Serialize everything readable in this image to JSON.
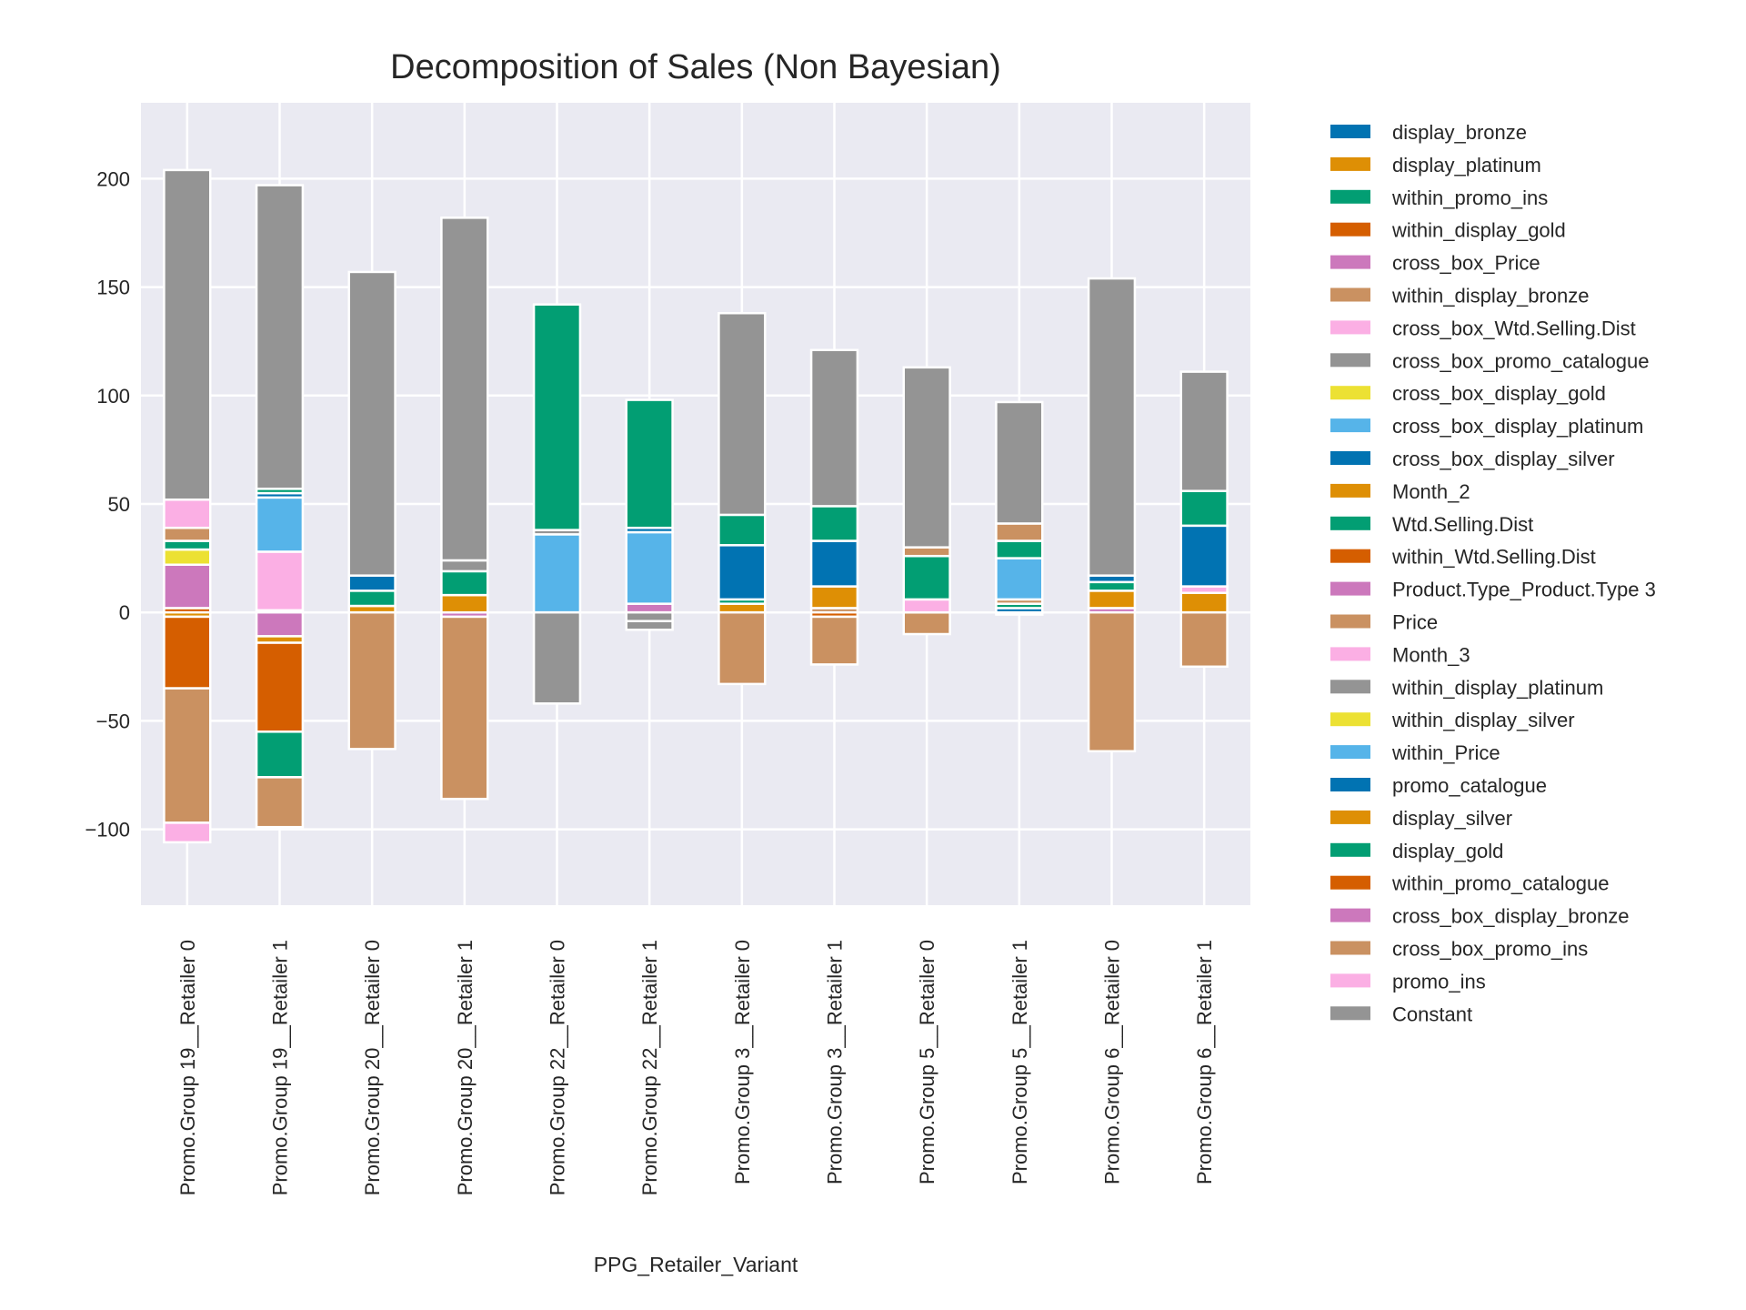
{
  "chart_data": {
    "type": "bar",
    "stacked": true,
    "diverging": true,
    "title": "Decomposition of Sales (Non Bayesian)",
    "xlabel": "PPG_Retailer_Variant",
    "ylabel": "",
    "ylim": [
      -135,
      235
    ],
    "yticks": [
      -100,
      -50,
      0,
      50,
      100,
      150,
      200
    ],
    "ytick_labels": [
      "−100",
      "−50",
      "0",
      "50",
      "100",
      "150",
      "200"
    ],
    "grid": true,
    "legend_position": "right-outside",
    "categories": [
      "Promo.Group 19__Retailer 0",
      "Promo.Group 19__Retailer 1",
      "Promo.Group 20__Retailer 0",
      "Promo.Group 20__Retailer 1",
      "Promo.Group 22__Retailer 0",
      "Promo.Group 22__Retailer 1",
      "Promo.Group 3__Retailer 0",
      "Promo.Group 3__Retailer 1",
      "Promo.Group 5__Retailer 0",
      "Promo.Group 5__Retailer 1",
      "Promo.Group 6__Retailer 0",
      "Promo.Group 6__Retailer 1"
    ],
    "series": [
      {
        "name": "display_bronze",
        "color": "#0173b2",
        "values": [
          0,
          0,
          0,
          0,
          0,
          0,
          0,
          0,
          0,
          0,
          0,
          0
        ]
      },
      {
        "name": "display_platinum",
        "color": "#de8f05",
        "values": [
          0,
          0,
          0,
          0,
          0,
          0,
          0,
          0,
          0,
          0,
          0,
          0
        ]
      },
      {
        "name": "within_promo_ins",
        "color": "#029e73",
        "values": [
          0,
          0,
          0,
          0,
          0,
          0,
          0,
          0,
          0,
          0,
          0,
          0
        ]
      },
      {
        "name": "within_display_gold",
        "color": "#d55e00",
        "values": [
          2,
          1,
          0,
          0,
          0,
          0,
          0,
          0,
          0,
          0,
          0,
          0
        ]
      },
      {
        "name": "cross_box_Price",
        "color": "#cc78bc",
        "values": [
          20,
          -11,
          0,
          -2,
          0,
          4,
          0,
          0,
          0,
          0,
          2,
          0
        ]
      },
      {
        "name": "within_display_bronze",
        "color": "#ca9161",
        "values": [
          0,
          0,
          0,
          0,
          0,
          0,
          0,
          2,
          0,
          0,
          0,
          0
        ]
      },
      {
        "name": "cross_box_Wtd.Selling.Dist",
        "color": "#fbafe4",
        "values": [
          0,
          27,
          0,
          0,
          0,
          0,
          0,
          0,
          0,
          0,
          0,
          0
        ]
      },
      {
        "name": "cross_box_promo_catalogue",
        "color": "#949494",
        "values": [
          0,
          0,
          0,
          0,
          0,
          0,
          0,
          0,
          0,
          0,
          0,
          0
        ]
      },
      {
        "name": "cross_box_display_gold",
        "color": "#ece133",
        "values": [
          7,
          0,
          0,
          0,
          0,
          0,
          0,
          0,
          0,
          0,
          0,
          0
        ]
      },
      {
        "name": "cross_box_display_platinum",
        "color": "#56b4e9",
        "values": [
          0,
          25,
          0,
          0,
          36,
          33,
          0,
          0,
          0,
          0,
          0,
          0
        ]
      },
      {
        "name": "cross_box_display_silver",
        "color": "#0173b2",
        "values": [
          0,
          2,
          0,
          0,
          0,
          2,
          0,
          0,
          0,
          2,
          0,
          0
        ]
      },
      {
        "name": "Month_2",
        "color": "#de8f05",
        "values": [
          -2,
          -3,
          3,
          8,
          0,
          0,
          4,
          10,
          0,
          0,
          8,
          9
        ]
      },
      {
        "name": "Wtd.Selling.Dist",
        "color": "#029e73",
        "values": [
          4,
          2,
          7,
          11,
          0,
          0,
          2,
          0,
          0,
          2,
          4,
          0
        ]
      },
      {
        "name": "within_Wtd.Selling.Dist",
        "color": "#d55e00",
        "values": [
          0,
          -41,
          0,
          0,
          0,
          0,
          0,
          -2,
          0,
          0,
          0,
          0
        ]
      },
      {
        "name": "Product.Type_Product.Type 3",
        "color": "#cc78bc",
        "values": [
          0,
          0,
          0,
          0,
          0,
          0,
          0,
          0,
          0,
          0,
          0,
          0
        ]
      },
      {
        "name": "Price",
        "color": "#ca9161",
        "values": [
          6,
          0,
          -63,
          -84,
          0,
          0,
          -33,
          -22,
          -10,
          2,
          -64,
          -25
        ]
      },
      {
        "name": "Month_3",
        "color": "#fbafe4",
        "values": [
          13,
          0,
          0,
          0,
          0,
          0,
          0,
          0,
          6,
          0,
          0,
          3
        ]
      },
      {
        "name": "within_display_platinum",
        "color": "#949494",
        "values": [
          0,
          0,
          0,
          5,
          2,
          -4,
          0,
          0,
          0,
          -1,
          0,
          0
        ]
      },
      {
        "name": "within_display_silver",
        "color": "#ece133",
        "values": [
          0,
          0,
          0,
          0,
          0,
          0,
          0,
          0,
          0,
          0,
          0,
          0
        ]
      },
      {
        "name": "within_Price",
        "color": "#56b4e9",
        "values": [
          0,
          0,
          0,
          0,
          0,
          0,
          0,
          0,
          0,
          19,
          0,
          0
        ]
      },
      {
        "name": "promo_catalogue",
        "color": "#0173b2",
        "values": [
          0,
          0,
          7,
          0,
          0,
          0,
          25,
          21,
          0,
          0,
          3,
          28
        ]
      },
      {
        "name": "display_silver",
        "color": "#de8f05",
        "values": [
          0,
          0,
          0,
          0,
          0,
          0,
          0,
          0,
          0,
          0,
          0,
          0
        ]
      },
      {
        "name": "display_gold",
        "color": "#029e73",
        "values": [
          0,
          -21,
          0,
          0,
          104,
          59,
          14,
          16,
          20,
          8,
          0,
          16
        ]
      },
      {
        "name": "within_promo_catalogue",
        "color": "#d55e00",
        "values": [
          -33,
          0,
          0,
          0,
          0,
          0,
          0,
          0,
          0,
          0,
          0,
          0
        ]
      },
      {
        "name": "cross_box_display_bronze",
        "color": "#cc78bc",
        "values": [
          0,
          0,
          0,
          0,
          0,
          0,
          0,
          0,
          0,
          0,
          0,
          0
        ]
      },
      {
        "name": "cross_box_promo_ins",
        "color": "#ca9161",
        "values": [
          -62,
          -23,
          0,
          0,
          0,
          0,
          0,
          0,
          4,
          8,
          0,
          0
        ]
      },
      {
        "name": "promo_ins",
        "color": "#fbafe4",
        "values": [
          -9,
          0,
          0,
          0,
          0,
          0,
          0,
          0,
          0,
          0,
          0,
          0
        ]
      },
      {
        "name": "Constant",
        "color": "#949494",
        "values": [
          152,
          140,
          140,
          158,
          -42,
          -4,
          93,
          72,
          83,
          56,
          137,
          55
        ]
      }
    ]
  }
}
